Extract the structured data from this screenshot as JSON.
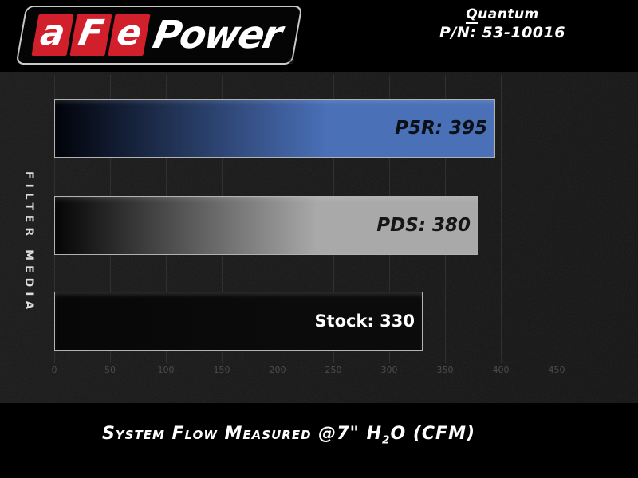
{
  "logo": {
    "red_letters": [
      "a",
      "F",
      "e"
    ],
    "power_text": "Power",
    "registered_mark": "®",
    "red_color": "#d21f2c"
  },
  "header": {
    "product_name_initial": "Q",
    "product_name_rest": "uantum",
    "part_number": "P/N: 53-10016"
  },
  "caption": {
    "pre": "System Flow Measured @7\" H",
    "sub": "2",
    "post": "O (CFM)"
  },
  "chart_data": {
    "type": "bar",
    "orientation": "horizontal",
    "title": "",
    "caption": "System Flow Measured @7\" H2O (CFM)",
    "ylabel": "FILTER MEDIA",
    "xlabel": "",
    "xlim": [
      0,
      450
    ],
    "xticks": [
      0,
      50,
      100,
      150,
      200,
      250,
      300,
      350,
      400,
      450
    ],
    "grid": true,
    "categories": [
      "P5R",
      "PDS",
      "Stock"
    ],
    "values": [
      395,
      380,
      330
    ],
    "bars": [
      {
        "name": "p5r",
        "label": "P5R",
        "value": 395,
        "display": "P5R: 395",
        "color_start": "#010309",
        "color_end": "#4a70b8",
        "label_color": "#0b0f16"
      },
      {
        "name": "pds",
        "label": "PDS",
        "value": 380,
        "display": "PDS: 380",
        "color_start": "#050505",
        "color_end": "#a9a9a9",
        "label_color": "#161616"
      },
      {
        "name": "stock",
        "label": "Stock",
        "value": 330,
        "display": "Stock: 330",
        "color_start": "#070707",
        "color_end": "#0b0b0b",
        "label_color": "#ffffff"
      }
    ],
    "legend_position": "none"
  },
  "colors": {
    "page_bg": "#000000",
    "chart_bg": "#161616",
    "grid_line": "#303030",
    "tick_label": "#4c4c4c",
    "bar_border": "#b2b2b2",
    "logo_red": "#d21f2c"
  }
}
